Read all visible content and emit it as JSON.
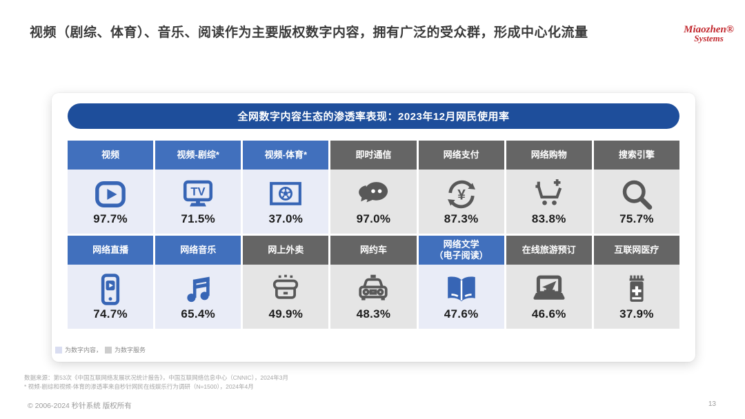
{
  "slide": {
    "title": "视频（剧综、体育）、音乐、阅读作为主要版权数字内容，拥有广泛的受众群，形成中心化流量",
    "copyright": "© 2006-2024 秒针系统 版权所有",
    "page_number": "13"
  },
  "logo": {
    "line1": "Miaozhen®",
    "line2": "Systems"
  },
  "panel": {
    "header": "全网数字内容生态的渗透率表现：2023年12月网民使用率"
  },
  "legend": [
    {
      "label": "为数字内容，",
      "swatch": "#d9ddf1",
      "meaning": "数字内容"
    },
    {
      "label": "为数字服务",
      "swatch": "#cdcdcd",
      "meaning": "数字服务"
    }
  ],
  "footnotes": [
    "数据来源：第53次《中国互联网络发展状况统计报告》，中国互联网络信息中心（CNNIC），2024年3月",
    "* 视频-剧综和视频-体育的渗透率来自秒针网民在线娱乐行为调研（N=1500），2024年4月"
  ],
  "colors": {
    "header_pill": "#1e4e9b",
    "cat_blue": "#4170bd",
    "cat_gray": "#656565",
    "cell_blue_bg": "#e9ecf7",
    "cell_gray_bg": "#e5e5e5",
    "icon_blue": "#3765b5",
    "icon_gray": "#585858",
    "logo_red": "#c2272d"
  },
  "grid": {
    "rows": [
      [
        {
          "label": "视频",
          "value": "97.7%",
          "group": "content",
          "icon": "video-play"
        },
        {
          "label": "视频-剧综*",
          "value": "71.5%",
          "group": "content",
          "icon": "tv"
        },
        {
          "label": "视频-体育*",
          "value": "37.0%",
          "group": "content",
          "icon": "sports-screen"
        },
        {
          "label": "即时通信",
          "value": "97.0%",
          "group": "service",
          "icon": "chat-bubbles"
        },
        {
          "label": "网络支付",
          "value": "87.3%",
          "group": "service",
          "icon": "payment-cycle"
        },
        {
          "label": "网络购物",
          "value": "83.8%",
          "group": "service",
          "icon": "cart-plus"
        },
        {
          "label": "搜索引擎",
          "value": "75.7%",
          "group": "service",
          "icon": "magnifier"
        }
      ],
      [
        {
          "label": "网络直播",
          "value": "74.7%",
          "group": "content",
          "icon": "phone-live"
        },
        {
          "label": "网络音乐",
          "value": "65.4%",
          "group": "content",
          "icon": "music-notes"
        },
        {
          "label": "网上外卖",
          "value": "49.9%",
          "group": "service",
          "icon": "takeout-box"
        },
        {
          "label": "网约车",
          "value": "48.3%",
          "group": "service",
          "icon": "taxi"
        },
        {
          "label": "网络文学\n（电子阅读）",
          "value": "47.6%",
          "group": "content",
          "icon": "open-book"
        },
        {
          "label": "在线旅游预订",
          "value": "46.6%",
          "group": "service",
          "icon": "laptop-plane"
        },
        {
          "label": "互联网医疗",
          "value": "37.9%",
          "group": "service",
          "icon": "medicine-bottle"
        }
      ]
    ]
  },
  "chart_data": {
    "type": "table",
    "title": "全网数字内容生态的渗透率表现：2023年12月网民使用率",
    "unit": "%",
    "categories": [
      "视频",
      "视频-剧综*",
      "视频-体育*",
      "即时通信",
      "网络支付",
      "网络购物",
      "搜索引擎",
      "网络直播",
      "网络音乐",
      "网上外卖",
      "网约车",
      "网络文学（电子阅读）",
      "在线旅游预订",
      "互联网医疗"
    ],
    "values": [
      97.7,
      71.5,
      37.0,
      97.0,
      87.3,
      83.8,
      75.7,
      74.7,
      65.4,
      49.9,
      48.3,
      47.6,
      46.6,
      37.9
    ],
    "groups": [
      "数字内容",
      "数字内容",
      "数字内容",
      "数字服务",
      "数字服务",
      "数字服务",
      "数字服务",
      "数字内容",
      "数字内容",
      "数字服务",
      "数字服务",
      "数字内容",
      "数字服务",
      "数字服务"
    ],
    "legend": [
      {
        "label": "为数字内容",
        "color": "#e9ecf7"
      },
      {
        "label": "为数字服务",
        "color": "#e5e5e5"
      }
    ]
  }
}
